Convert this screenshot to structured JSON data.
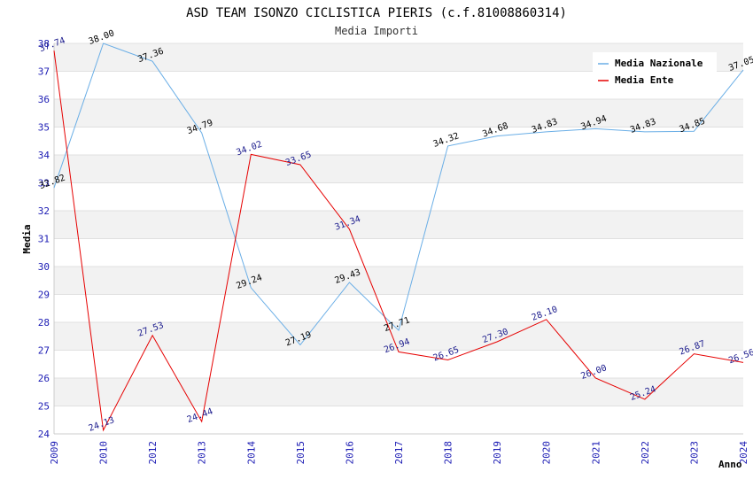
{
  "chart_data": {
    "type": "line",
    "title": "ASD TEAM ISONZO CICLISTICA PIERIS (c.f.81008860314)",
    "subtitle": "Media Importi",
    "xlabel": "Anno",
    "ylabel": "Media",
    "ylim": [
      24,
      38
    ],
    "yticks": [
      24,
      25,
      26,
      27,
      28,
      29,
      30,
      31,
      32,
      33,
      34,
      35,
      36,
      37,
      38
    ],
    "x": [
      "2009",
      "2010",
      "2012",
      "2013",
      "2014",
      "2015",
      "2016",
      "2017",
      "2018",
      "2019",
      "2020",
      "2021",
      "2022",
      "2023",
      "2024"
    ],
    "grid": true,
    "legend_position": "top-right",
    "series": [
      {
        "name": "Media Nazionale",
        "color": "#6aaee6",
        "values": [
          32.82,
          38.0,
          37.36,
          34.79,
          29.24,
          27.19,
          29.43,
          27.71,
          34.32,
          34.68,
          34.83,
          34.94,
          34.83,
          34.85,
          37.05
        ],
        "labels": [
          "32.82",
          "38.00",
          "37.36",
          "34.79",
          "29.24",
          "27.19",
          "29.43",
          "27.71",
          "34.32",
          "34.68",
          "34.83",
          "34.94",
          "34.83",
          "34.85",
          "37.05"
        ]
      },
      {
        "name": "Media Ente",
        "color": "#e60000",
        "values": [
          37.74,
          24.13,
          27.53,
          24.44,
          34.02,
          33.65,
          31.34,
          26.94,
          26.65,
          27.3,
          28.1,
          26.0,
          25.24,
          26.87,
          26.56
        ],
        "labels": [
          "37.74",
          "24.13",
          "27.53",
          "24.44",
          "34.02",
          "33.65",
          "31.34",
          "26.94",
          "26.65",
          "27.30",
          "28.10",
          "26.00",
          "25.24",
          "26.87",
          "26.56"
        ]
      }
    ]
  }
}
